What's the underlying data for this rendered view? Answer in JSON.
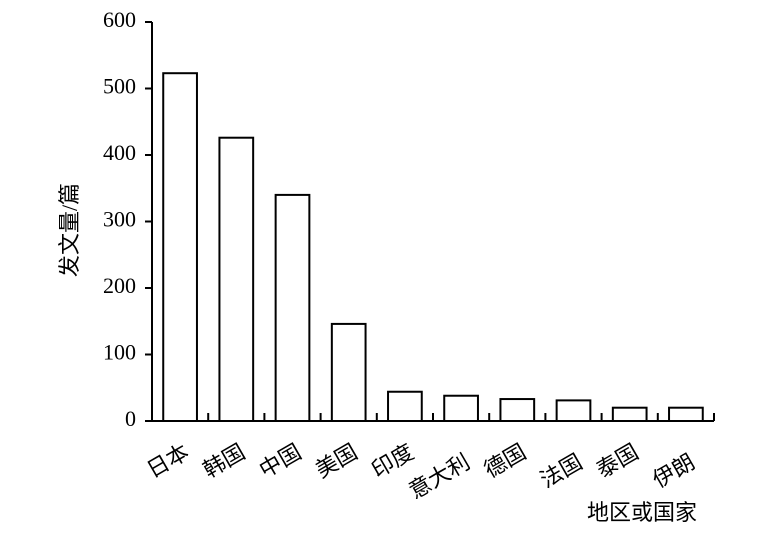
{
  "chart_data": {
    "type": "bar",
    "categories": [
      "日本",
      "韩国",
      "中国",
      "美国",
      "印度",
      "意大利",
      "德国",
      "法国",
      "泰国",
      "伊朗"
    ],
    "values": [
      523,
      426,
      340,
      146,
      44,
      38,
      33,
      31,
      20,
      20
    ],
    "color": "#ffffff",
    "x_label": "地区或国家",
    "y_label": "发文量/篇",
    "ylim": [
      0,
      600
    ],
    "yticks": [
      0,
      100,
      200,
      300,
      400,
      500,
      600
    ],
    "grid": false
  }
}
